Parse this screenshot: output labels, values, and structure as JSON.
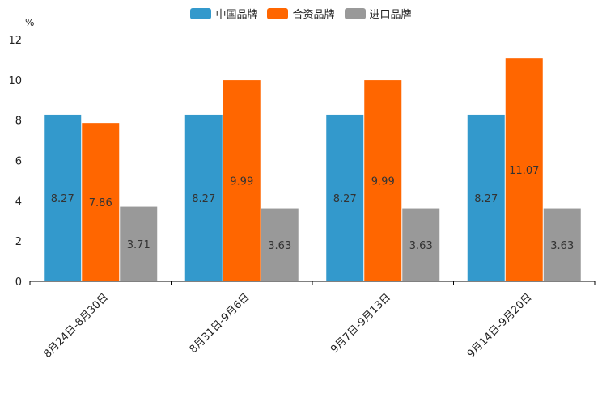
{
  "chart_data": {
    "type": "bar",
    "title": "",
    "ylabel": "%",
    "xlabel": "",
    "ylim": [
      0,
      12
    ],
    "yticks": [
      0,
      2,
      4,
      6,
      8,
      10,
      12
    ],
    "categories": [
      "8月24日-8月30日",
      "8月31日-9月6日",
      "9月7日-9月13日",
      "9月14日-9月20日"
    ],
    "series": [
      {
        "name": "中国品牌",
        "color": "#3399CC",
        "values": [
          8.27,
          8.27,
          8.27,
          8.27
        ]
      },
      {
        "name": "合资品牌",
        "color": "#FF6600",
        "values": [
          7.86,
          9.99,
          9.99,
          11.07
        ]
      },
      {
        "name": "进口品牌",
        "color": "#999999",
        "values": [
          3.71,
          3.63,
          3.63,
          3.63
        ]
      }
    ],
    "legend_position": "top-center",
    "grid": false
  }
}
